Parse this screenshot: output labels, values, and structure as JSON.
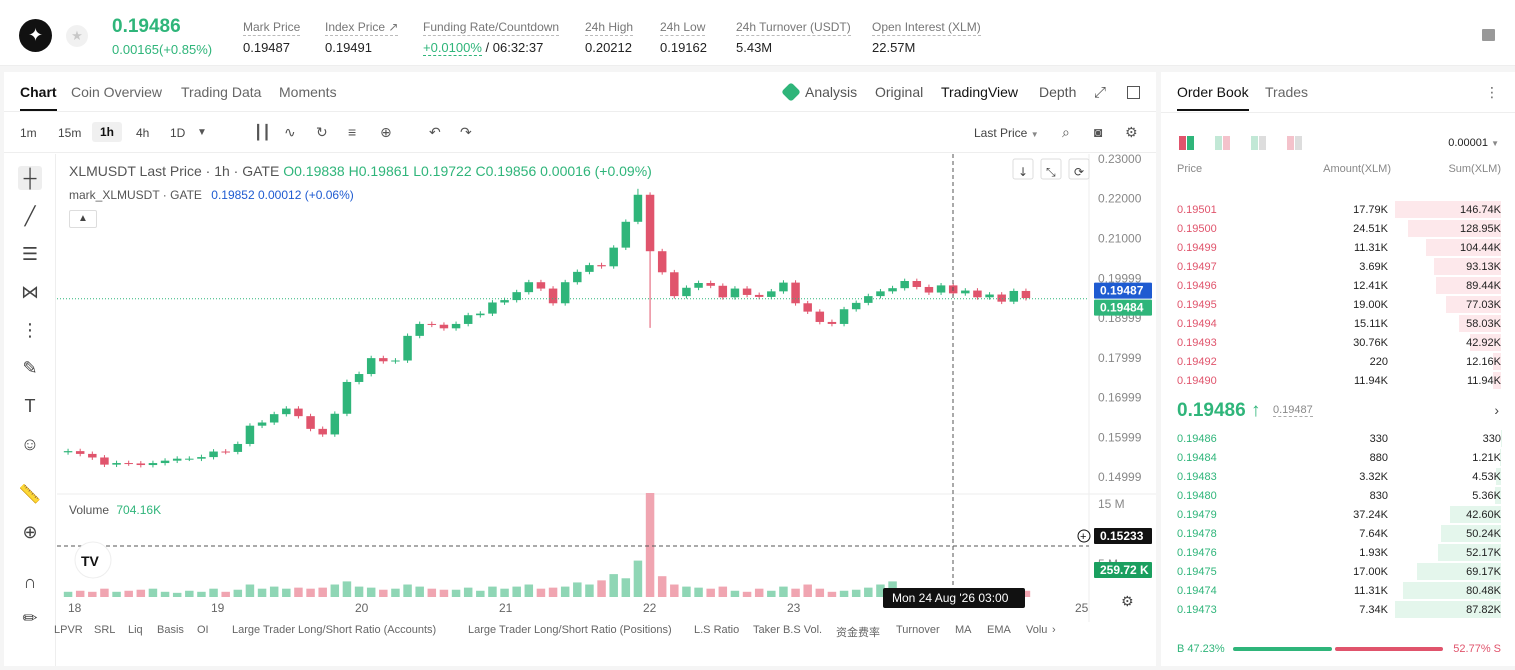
{
  "header": {
    "price": "0.19486",
    "change": "0.00165(+0.85%)",
    "stats": [
      {
        "label": "Mark Price",
        "value": "0.19487",
        "x": 243
      },
      {
        "label": "Index Price ↗",
        "value": "0.19491",
        "x": 325
      },
      {
        "label": "Funding Rate/Countdown",
        "value_green": "+0.0100%",
        "value": " / 06:32:37",
        "x": 423
      },
      {
        "label": "24h High",
        "value": "0.20212",
        "x": 585
      },
      {
        "label": "24h Low",
        "value": "0.19162",
        "x": 660
      },
      {
        "label": "24h Turnover (USDT)",
        "value": "5.43M",
        "x": 736
      },
      {
        "label": "Open Interest (XLM)",
        "value": "22.57M",
        "x": 872
      }
    ]
  },
  "tabs": {
    "chart": "Chart",
    "coin": "Coin Overview",
    "trading": "Trading Data",
    "moments": "Moments",
    "analysis": "Analysis",
    "original": "Original",
    "tv": "TradingView",
    "depth": "Depth"
  },
  "toolbar": {
    "tf": [
      "1m",
      "15m",
      "1h",
      "4h",
      "1D"
    ],
    "last_price": "Last Price"
  },
  "legend": {
    "sym": "XLMUSDT Last Price · 1h · GATE",
    "o": "O0.19838",
    "h": "H0.19861",
    "l": "L0.19722",
    "c": "C0.19856",
    "chg": "0.00016 (+0.09%)",
    "mark": "mark_XLMUSDT · GATE",
    "mark_v": "0.19852",
    "mark_c": "0.00012 (+0.06%)",
    "vol": "Volume",
    "vol_v": "704.16K"
  },
  "chart_data": {
    "type": "candlestick",
    "y_ticks": [
      "0.23000",
      "0.22000",
      "0.21000",
      "0.19999",
      "0.18999",
      "0.17999",
      "0.16999",
      "0.15999",
      "0.14999"
    ],
    "x_ticks": [
      "18",
      "19",
      "20",
      "21",
      "22",
      "23",
      "24",
      "25"
    ],
    "vol_ticks": [
      "15 M",
      "10 M",
      "5 M"
    ],
    "last_label": "0.19487",
    "mark_label": "0.19484",
    "cross_label": "0.15233",
    "vol_label": "259.72 K",
    "time_label": "Mon 24 Aug '26   03:00",
    "closes": [
      0.1565,
      0.1558,
      0.1549,
      0.1531,
      0.1535,
      0.1534,
      0.153,
      0.1535,
      0.1541,
      0.1546,
      0.1546,
      0.155,
      0.1564,
      0.1563,
      0.1583,
      0.1629,
      0.1637,
      0.1658,
      0.1672,
      0.1653,
      0.1621,
      0.1607,
      0.1659,
      0.1739,
      0.1759,
      0.1799,
      0.1791,
      0.1793,
      0.1855,
      0.1885,
      0.1883,
      0.1874,
      0.1885,
      0.1907,
      0.1911,
      0.1939,
      0.1945,
      0.1965,
      0.199,
      0.1974,
      0.1937,
      0.199,
      0.2016,
      0.2033,
      0.203,
      0.2077,
      0.2142,
      0.221,
      0.2068,
      0.2015,
      0.1955,
      0.1976,
      0.1988,
      0.1981,
      0.1952,
      0.1974,
      0.1958,
      0.1953,
      0.1967,
      0.1989,
      0.1937,
      0.1916,
      0.189,
      0.1885,
      0.1922,
      0.1938,
      0.1955,
      0.1967,
      0.1975,
      0.1993,
      0.1978,
      0.1964,
      0.1982,
      0.1962,
      0.1969,
      0.1952,
      0.1959,
      0.1941,
      0.1968,
      0.195
    ],
    "volumes": [
      0.05,
      0.06,
      0.05,
      0.08,
      0.05,
      0.06,
      0.07,
      0.08,
      0.05,
      0.04,
      0.06,
      0.05,
      0.08,
      0.05,
      0.07,
      0.12,
      0.08,
      0.1,
      0.08,
      0.09,
      0.08,
      0.09,
      0.12,
      0.15,
      0.1,
      0.09,
      0.07,
      0.08,
      0.12,
      0.1,
      0.08,
      0.07,
      0.07,
      0.09,
      0.06,
      0.1,
      0.08,
      0.1,
      0.12,
      0.08,
      0.09,
      0.1,
      0.14,
      0.12,
      0.16,
      0.22,
      0.18,
      0.35,
      1.0,
      0.2,
      0.12,
      0.1,
      0.09,
      0.08,
      0.1,
      0.06,
      0.05,
      0.08,
      0.06,
      0.1,
      0.08,
      0.12,
      0.08,
      0.05,
      0.06,
      0.07,
      0.09,
      0.12,
      0.15,
      0.08,
      0.05,
      0.06,
      0.08,
      0.06,
      0.07,
      0.08,
      0.06,
      0.08,
      0.05,
      0.06
    ]
  },
  "bottom": [
    "LPVR",
    "SRL",
    "Liq",
    "Basis",
    "OI",
    "Large Trader Long/Short Ratio (Accounts)",
    "Large Trader Long/Short Ratio (Positions)",
    "L.S Ratio",
    "Taker B.S Vol.",
    "资金费率",
    "Turnover",
    "MA",
    "EMA",
    "Volu"
  ],
  "orderbook": {
    "tab1": "Order Book",
    "tab2": "Trades",
    "precision": "0.00001",
    "h_price": "Price",
    "h_amount": "Amount(XLM)",
    "h_sum": "Sum(XLM)",
    "asks": [
      [
        "0.19501",
        "17.79K",
        "146.74K",
        1.0
      ],
      [
        "0.19500",
        "24.51K",
        "128.95K",
        0.88
      ],
      [
        "0.19499",
        "11.31K",
        "104.44K",
        0.71
      ],
      [
        "0.19497",
        "3.69K",
        "93.13K",
        0.63
      ],
      [
        "0.19496",
        "12.41K",
        "89.44K",
        0.61
      ],
      [
        "0.19495",
        "19.00K",
        "77.03K",
        0.52
      ],
      [
        "0.19494",
        "15.11K",
        "58.03K",
        0.4
      ],
      [
        "0.19493",
        "30.76K",
        "42.92K",
        0.29
      ],
      [
        "0.19492",
        "220",
        "12.16K",
        0.08
      ],
      [
        "0.19490",
        "11.94K",
        "11.94K",
        0.08
      ]
    ],
    "last": "0.19486 ↑",
    "mark": "0.19487",
    "bids": [
      [
        "0.19486",
        "330",
        "330",
        0.004
      ],
      [
        "0.19484",
        "880",
        "1.21K",
        0.014
      ],
      [
        "0.19483",
        "3.32K",
        "4.53K",
        0.05
      ],
      [
        "0.19480",
        "830",
        "5.36K",
        0.06
      ],
      [
        "0.19479",
        "37.24K",
        "42.60K",
        0.48
      ],
      [
        "0.19478",
        "7.64K",
        "50.24K",
        0.57
      ],
      [
        "0.19476",
        "1.93K",
        "52.17K",
        0.59
      ],
      [
        "0.19475",
        "17.00K",
        "69.17K",
        0.79
      ],
      [
        "0.19474",
        "11.31K",
        "80.48K",
        0.92
      ],
      [
        "0.19473",
        "7.34K",
        "87.82K",
        1.0
      ]
    ],
    "buy": "B 47.23%",
    "sell": "52.77% S",
    "buy_frac": 0.4723
  },
  "colors": {
    "green": "#2fb57a",
    "red": "#e0546c"
  }
}
